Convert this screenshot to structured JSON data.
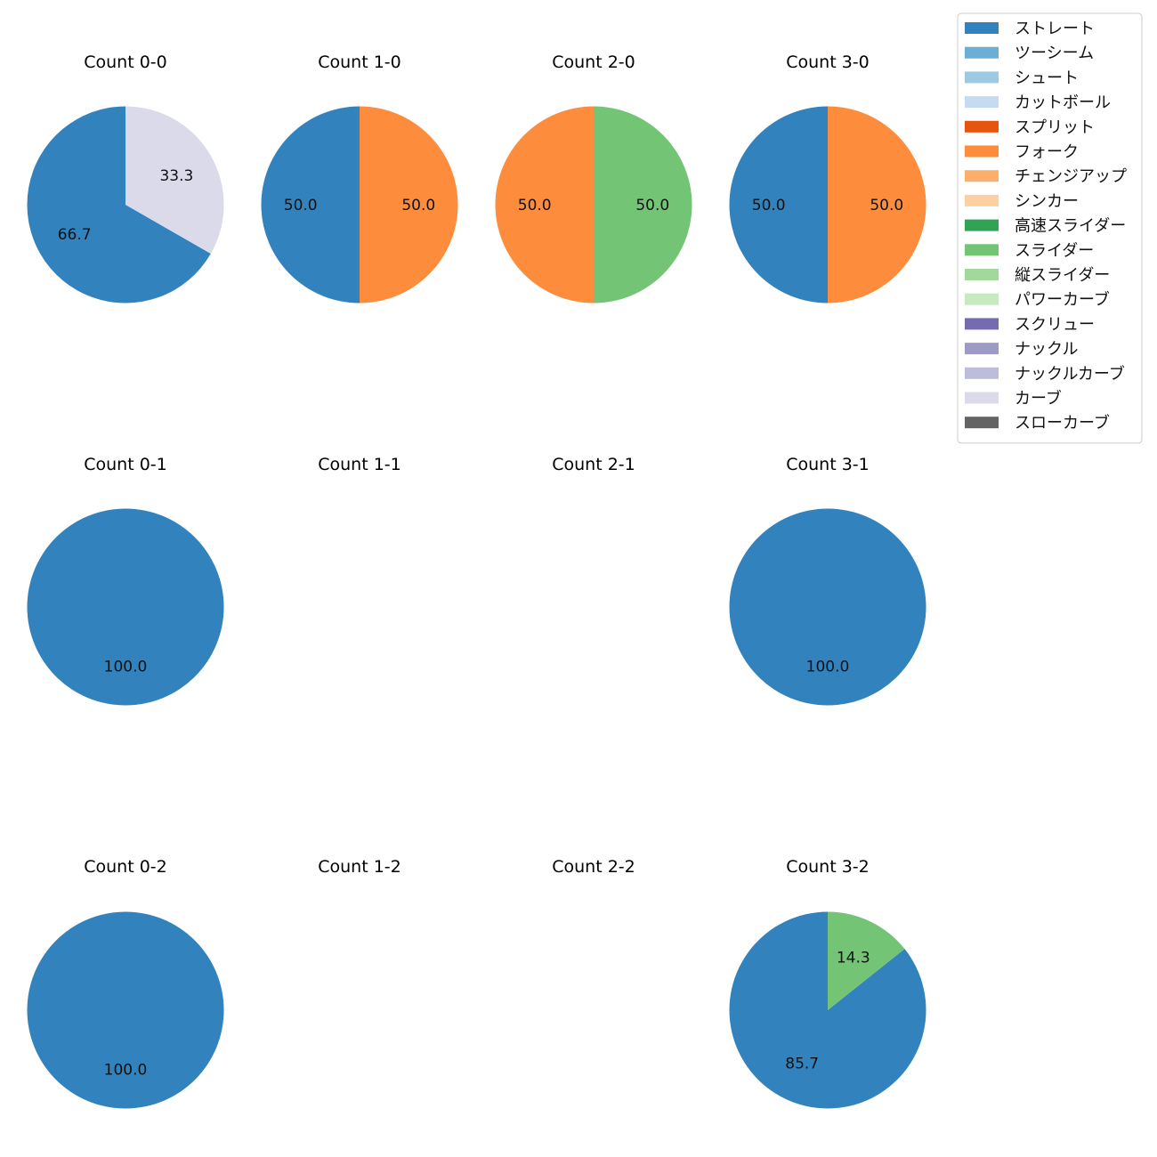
{
  "colors": {
    "ストレート": "#3182bd",
    "ツーシーム": "#6baed6",
    "シュート": "#9ecae1",
    "カットボール": "#c6dbef",
    "スプリット": "#e6550d",
    "フォーク": "#fd8d3c",
    "チェンジアップ": "#fdae6b",
    "シンカー": "#fdd0a2",
    "高速スライダー": "#31a354",
    "スライダー": "#74c476",
    "縦スライダー": "#a1d99b",
    "パワーカーブ": "#c7e9c0",
    "スクリュー": "#756bb1",
    "ナックル": "#9e9ac8",
    "ナックルカーブ": "#bcbddc",
    "カーブ": "#dadaeb",
    "スローカーブ": "#636363"
  },
  "chart_data": {
    "type": "pie",
    "legend": {
      "placement": "top-right",
      "entries": [
        "ストレート",
        "ツーシーム",
        "シュート",
        "カットボール",
        "スプリット",
        "フォーク",
        "チェンジアップ",
        "シンカー",
        "高速スライダー",
        "スライダー",
        "縦スライダー",
        "パワーカーブ",
        "スクリュー",
        "ナックル",
        "ナックルカーブ",
        "カーブ",
        "スローカーブ"
      ]
    },
    "panels": [
      {
        "title": "Count 0-0",
        "slices": [
          {
            "label": "ストレート",
            "value": 66.7
          },
          {
            "label": "カーブ",
            "value": 33.3
          }
        ]
      },
      {
        "title": "Count 1-0",
        "slices": [
          {
            "label": "ストレート",
            "value": 50.0
          },
          {
            "label": "フォーク",
            "value": 50.0
          }
        ]
      },
      {
        "title": "Count 2-0",
        "slices": [
          {
            "label": "フォーク",
            "value": 50.0
          },
          {
            "label": "スライダー",
            "value": 50.0
          }
        ]
      },
      {
        "title": "Count 3-0",
        "slices": [
          {
            "label": "ストレート",
            "value": 50.0
          },
          {
            "label": "フォーク",
            "value": 50.0
          }
        ]
      },
      {
        "title": "Count 0-1",
        "slices": [
          {
            "label": "ストレート",
            "value": 100.0
          }
        ]
      },
      {
        "title": "Count 1-1",
        "slices": []
      },
      {
        "title": "Count 2-1",
        "slices": []
      },
      {
        "title": "Count 3-1",
        "slices": [
          {
            "label": "ストレート",
            "value": 100.0
          }
        ]
      },
      {
        "title": "Count 0-2",
        "slices": [
          {
            "label": "ストレート",
            "value": 100.0
          }
        ]
      },
      {
        "title": "Count 1-2",
        "slices": []
      },
      {
        "title": "Count 2-2",
        "slices": []
      },
      {
        "title": "Count 3-2",
        "slices": [
          {
            "label": "ストレート",
            "value": 85.7
          },
          {
            "label": "スライダー",
            "value": 14.3
          }
        ]
      }
    ]
  }
}
